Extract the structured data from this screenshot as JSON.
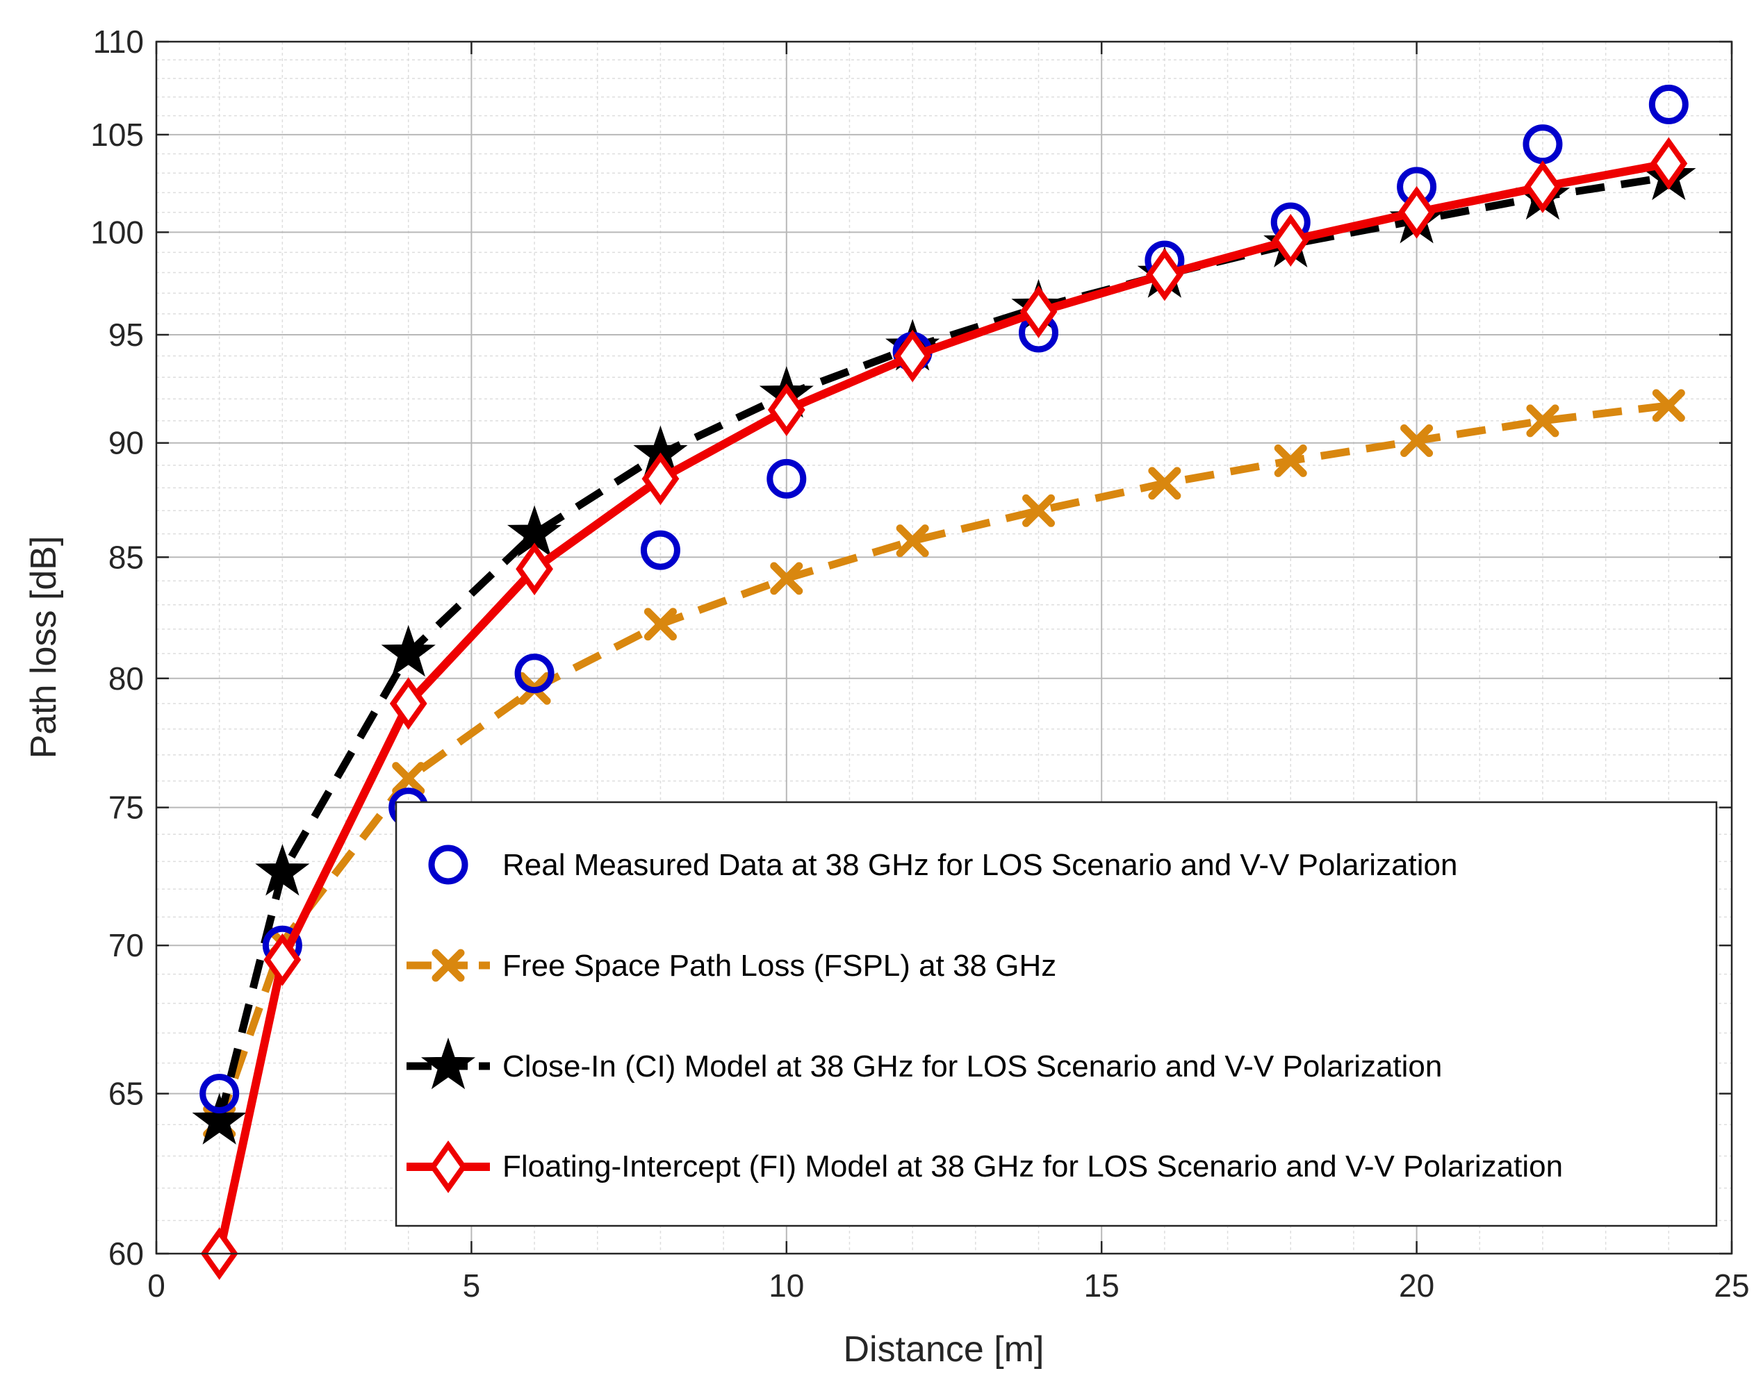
{
  "colors": {
    "measured": "#0000cc",
    "fspl": "#d9870f",
    "ci": "#000000",
    "fi": "#ee0000",
    "grid_major": "#b8b8b8",
    "grid_minor": "#dedede",
    "axis": "#262626"
  },
  "chart_data": {
    "type": "line",
    "title": "",
    "xlabel": "Distance [m]",
    "ylabel": "Path loss [dB]",
    "xlim": [
      0,
      25
    ],
    "ylim": [
      60,
      110
    ],
    "y_scale": "log",
    "grid": true,
    "minor_grid": true,
    "xticks": [
      0,
      5,
      10,
      15,
      20,
      25
    ],
    "yticks": [
      60,
      65,
      70,
      75,
      80,
      85,
      90,
      95,
      100,
      105,
      110
    ],
    "legend_position": "bottom-right",
    "series": [
      {
        "name": "Real Measured Data at 38 GHz for LOS Scenario and V-V Polarization",
        "style": "markers-only",
        "marker": "circle",
        "color": "measured",
        "x": [
          1,
          2,
          4,
          6,
          8,
          10,
          12,
          14,
          16,
          18,
          20,
          22,
          24
        ],
        "values": [
          65.0,
          70.0,
          75.0,
          80.2,
          85.3,
          88.4,
          94.2,
          95.1,
          98.6,
          100.5,
          102.3,
          104.5,
          106.6
        ]
      },
      {
        "name": "Free Space Path Loss (FSPL) at 38 GHz",
        "style": "dashed",
        "marker": "x",
        "color": "fspl",
        "x": [
          1,
          2,
          4,
          6,
          8,
          10,
          12,
          14,
          16,
          18,
          20,
          22,
          24
        ],
        "values": [
          64.1,
          70.1,
          76.1,
          79.6,
          82.2,
          84.1,
          85.7,
          87.0,
          88.2,
          89.2,
          90.1,
          91.0,
          91.7
        ]
      },
      {
        "name": "Close-In (CI) Model at 38 GHz for LOS Scenario and V-V Polarization",
        "style": "dashed",
        "marker": "star",
        "color": "ci",
        "x": [
          1,
          2,
          4,
          6,
          8,
          10,
          12,
          14,
          16,
          18,
          20,
          22,
          24
        ],
        "values": [
          64.1,
          72.6,
          81.0,
          86.0,
          89.5,
          92.2,
          94.4,
          96.3,
          97.9,
          99.4,
          100.6,
          101.8,
          102.8
        ]
      },
      {
        "name": "Floating-Intercept (FI) Model at 38 GHz for LOS Scenario and V-V Polarization",
        "style": "solid",
        "marker": "diamond",
        "color": "fi",
        "x": [
          1,
          2,
          4,
          6,
          8,
          10,
          12,
          14,
          16,
          18,
          20,
          22,
          24
        ],
        "values": [
          60.0,
          69.5,
          79.0,
          84.5,
          88.4,
          91.5,
          94.0,
          96.1,
          97.9,
          99.6,
          101.0,
          102.3,
          103.5
        ]
      }
    ]
  }
}
